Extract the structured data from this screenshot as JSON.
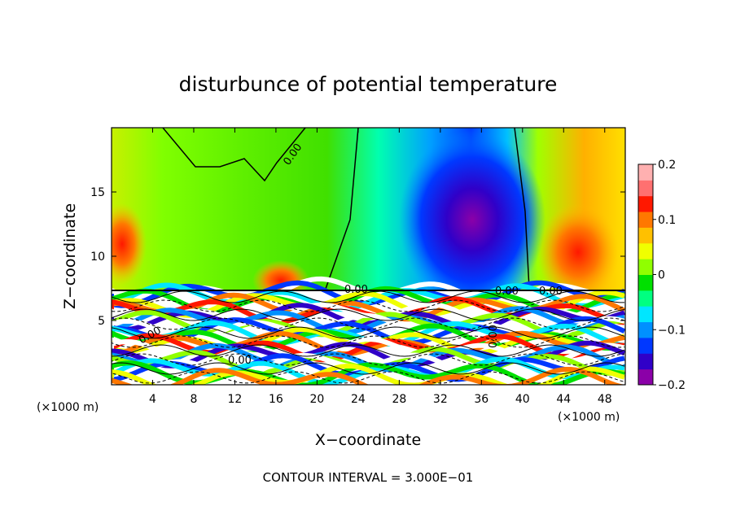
{
  "chart_data": {
    "type": "heatmap",
    "title": "disturbunce of potential temperature",
    "xlabel": "X−coordinate",
    "ylabel": "Z−coordinate",
    "x_unit_label": "(×1000 m)",
    "xlim": [
      0,
      50
    ],
    "ylim": [
      0,
      20
    ],
    "x_ticks": [
      4,
      8,
      12,
      16,
      20,
      24,
      28,
      32,
      36,
      40,
      44,
      48
    ],
    "y_ticks": [
      5,
      10,
      15
    ],
    "colorbar": {
      "range": [
        -0.2,
        0.2
      ],
      "ticks": [
        "0.2",
        "0.1",
        "0",
        "−0.1",
        "−0.2"
      ],
      "colors": [
        "#8b00a8",
        "#3000c8",
        "#0038ff",
        "#0090ff",
        "#00e6ff",
        "#00ff80",
        "#00e000",
        "#90ff00",
        "#f0ff00",
        "#ffc000",
        "#ff7800",
        "#ff1800",
        "#ff7070",
        "#ffb0b0"
      ]
    },
    "contour_labels": [
      "0.00",
      "0.00",
      "0.00",
      "0.00",
      "0.00",
      "0.00",
      "0.00"
    ],
    "contour_interval_text": "CONTOUR INTERVAL =  3.000E−01"
  }
}
